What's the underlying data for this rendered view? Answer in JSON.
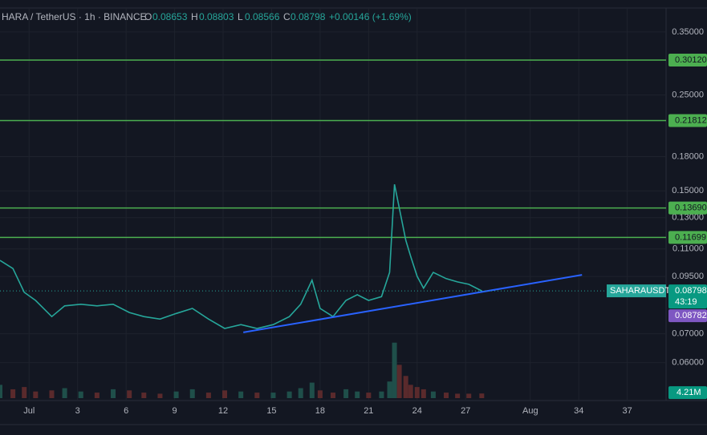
{
  "header": {
    "symbol": "HARA / TetherUS · 1h · BINANCE",
    "open_label": "O",
    "open": 0.08653,
    "high_label": "H",
    "high": 0.08803,
    "low_label": "L",
    "low": 0.08566,
    "close_label": "C",
    "close": 0.08798,
    "change": "+0.00146 (+1.69%)"
  },
  "chart_data": {
    "type": "line",
    "log_scale": true,
    "grid": true,
    "series": [
      {
        "name": "SAHARAUSDT",
        "color": "#26a69a",
        "x": [
          -1.8,
          -1.0,
          -0.3,
          0.4,
          1.4,
          2.2,
          3.2,
          4.2,
          5.2,
          6.2,
          7.1,
          8.1,
          9.1,
          10.1,
          11.1,
          12.1,
          13.1,
          14.1,
          15.1,
          16.1,
          16.8,
          17.5,
          18.0,
          18.8,
          19.6,
          20.3,
          21.0,
          21.8,
          22.3,
          22.6,
          22.9,
          23.3,
          23.6,
          24.0,
          24.4,
          25.0,
          25.8,
          26.5,
          27.2,
          28.0
        ],
        "values": [
          0.1035,
          0.0991,
          0.0873,
          0.0836,
          0.0767,
          0.0812,
          0.0819,
          0.0812,
          0.0819,
          0.0784,
          0.0767,
          0.0757,
          0.078,
          0.0801,
          0.0757,
          0.072,
          0.0735,
          0.072,
          0.0735,
          0.0767,
          0.0819,
          0.0931,
          0.0801,
          0.0767,
          0.0836,
          0.0862,
          0.0836,
          0.0853,
          0.0971,
          0.1553,
          0.1367,
          0.1152,
          0.1058,
          0.0951,
          0.0892,
          0.0971,
          0.0939,
          0.0923,
          0.0911,
          0.08798
        ]
      }
    ],
    "volume": [
      12000000,
      8000000,
      10000000,
      6000000,
      7000000,
      9000000,
      6000000,
      5000000,
      8000000,
      7000000,
      5000000,
      4000000,
      6000000,
      8000000,
      5000000,
      7000000,
      6000000,
      5000000,
      5000000,
      6000000,
      9000000,
      14000000,
      7000000,
      5000000,
      8000000,
      6000000,
      5000000,
      6000000,
      15000000,
      50000000,
      30000000,
      20000000,
      12000000,
      10000000,
      8000000,
      6000000,
      5000000,
      4000000,
      4000000,
      4210000
    ],
    "volume_label": "4.21M",
    "volume_lim": [
      0,
      70000000
    ],
    "volume_color": "#4a4f5c",
    "xlim": [
      -1.8,
      39.4
    ],
    "xticks": [
      {
        "value": 0,
        "label": "Jul"
      },
      3,
      6,
      9,
      12,
      15,
      18,
      21,
      24,
      27,
      {
        "value": 31,
        "label": "Aug"
      },
      34,
      37
    ],
    "ylim": [
      0.045,
      0.415
    ],
    "yticks": [
      {
        "value": 0.35,
        "label": "0.35000"
      },
      {
        "value": 0.25,
        "label": "0.25000"
      },
      {
        "value": 0.18,
        "label": "0.18000"
      },
      {
        "value": 0.15,
        "label": "0.15000"
      },
      {
        "value": 0.13,
        "label": "0.13000"
      },
      {
        "value": 0.11,
        "label": "0.11000"
      },
      {
        "value": 0.095,
        "label": "0.09500"
      },
      {
        "value": 0.07,
        "label": "0.07000"
      },
      {
        "value": 0.06,
        "label": "0.06000"
      }
    ],
    "levels": [
      {
        "value": 0.3012,
        "label": "0.30120"
      },
      {
        "value": 0.21812,
        "label": "0.21812"
      },
      {
        "value": 0.1369,
        "label": "0.13690"
      },
      {
        "value": 0.11699,
        "label": "0.11699"
      }
    ],
    "level_color": "#4caf50",
    "trendline": {
      "x": [
        13.25,
        34.2
      ],
      "values": [
        0.0705,
        0.0958
      ],
      "color": "#2962ff"
    },
    "last_price": 0.08798,
    "countdown": "43:19",
    "bid_price": 0.08782,
    "bid_color": "#7e57c2"
  }
}
